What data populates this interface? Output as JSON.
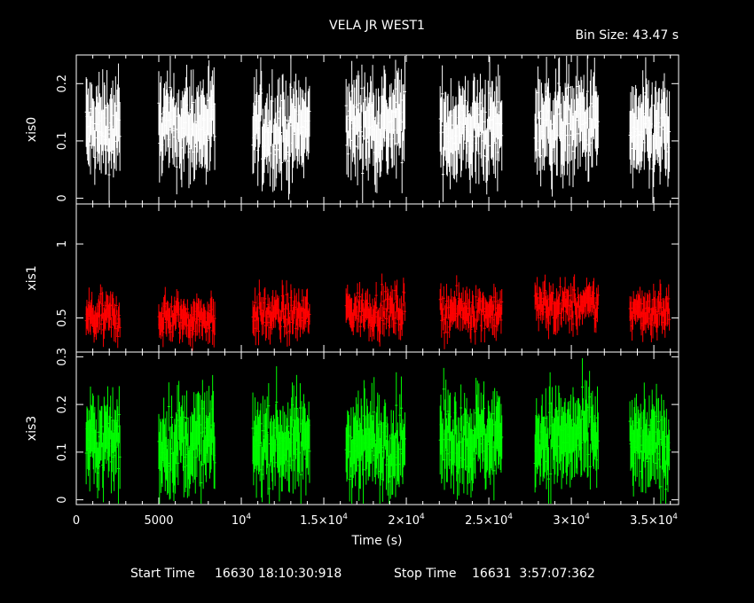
{
  "title": "VELA JR WEST1",
  "bin_size_text": "Bin Size: 43.47 s",
  "footer": {
    "start_label": "Start Time",
    "start_value": "16630 18:10:30:918",
    "stop_label": "Stop Time",
    "stop_value": "16631  3:57:07:362"
  },
  "chart_data": {
    "type": "scatter",
    "title": "VELA JR WEST1",
    "xlabel": "Time (s)",
    "xlim": [
      0,
      36500
    ],
    "x_ticks": [
      {
        "value": 0,
        "label": "0"
      },
      {
        "value": 5000,
        "label": "5000"
      },
      {
        "value": 10000,
        "label": "10",
        "exp": "4"
      },
      {
        "value": 15000,
        "label": "1.5×10",
        "exp": "4"
      },
      {
        "value": 20000,
        "label": "2×10",
        "exp": "4"
      },
      {
        "value": 25000,
        "label": "2.5×10",
        "exp": "4"
      },
      {
        "value": 30000,
        "label": "3×10",
        "exp": "4"
      },
      {
        "value": 35000,
        "label": "3.5×10",
        "exp": "4"
      }
    ],
    "segments": [
      [
        600,
        2650
      ],
      [
        5000,
        8400
      ],
      [
        10700,
        14150
      ],
      [
        16350,
        19950
      ],
      [
        22050,
        25800
      ],
      [
        27800,
        31650
      ],
      [
        33550,
        35950
      ]
    ],
    "panels": [
      {
        "name": "xis0",
        "ylabel": "xis0",
        "color": "#ffffff",
        "ylim": [
          -0.01,
          0.25
        ],
        "yticks": [
          "0",
          "0.1",
          "0.2"
        ],
        "ytick_values": [
          0,
          0.1,
          0.2
        ],
        "mean": 0.12,
        "spread": 0.03,
        "err": 0.055,
        "segment_means": [
          0.12,
          0.125,
          0.12,
          0.13,
          0.12,
          0.13,
          0.11
        ]
      },
      {
        "name": "xis1",
        "ylabel": "xis1",
        "color": "#ff0000",
        "ylim": [
          0.27,
          1.27
        ],
        "yticks": [
          "0.5",
          "1"
        ],
        "ytick_values": [
          0.5,
          1.0
        ],
        "mean": 0.52,
        "spread": 0.06,
        "err": 0.09,
        "segment_means": [
          0.5,
          0.5,
          0.52,
          0.55,
          0.55,
          0.58,
          0.55
        ]
      },
      {
        "name": "xis3",
        "ylabel": "xis3",
        "color": "#00ff00",
        "ylim": [
          -0.01,
          0.31
        ],
        "yticks": [
          "0",
          "0.1",
          "0.2",
          "0.3"
        ],
        "ytick_values": [
          0,
          0.1,
          0.2,
          0.3
        ],
        "mean": 0.12,
        "spread": 0.035,
        "err": 0.06,
        "segment_means": [
          0.12,
          0.12,
          0.12,
          0.12,
          0.13,
          0.13,
          0.11
        ]
      }
    ],
    "bin_size_s": 43.47
  }
}
